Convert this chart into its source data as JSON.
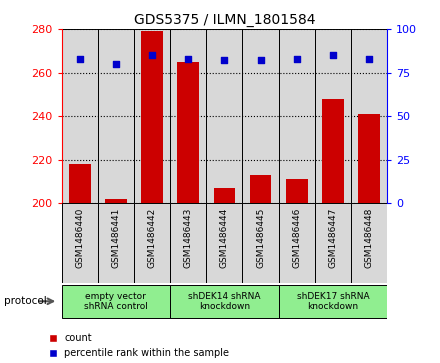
{
  "title": "GDS5375 / ILMN_1801584",
  "samples": [
    "GSM1486440",
    "GSM1486441",
    "GSM1486442",
    "GSM1486443",
    "GSM1486444",
    "GSM1486445",
    "GSM1486446",
    "GSM1486447",
    "GSM1486448"
  ],
  "counts": [
    218,
    202,
    279,
    265,
    207,
    213,
    211,
    248,
    241
  ],
  "percentile_ranks": [
    83,
    80,
    85,
    83,
    82,
    82,
    83,
    85,
    83
  ],
  "ylim_left": [
    200,
    280
  ],
  "ylim_right": [
    0,
    100
  ],
  "yticks_left": [
    200,
    220,
    240,
    260,
    280
  ],
  "yticks_right": [
    0,
    25,
    50,
    75,
    100
  ],
  "bar_color": "#cc0000",
  "dot_color": "#0000cc",
  "bar_bottom": 200,
  "groups": [
    {
      "label": "empty vector\nshRNA control",
      "start": 0,
      "end": 3,
      "color": "#90ee90"
    },
    {
      "label": "shDEK14 shRNA\nknockdown",
      "start": 3,
      "end": 6,
      "color": "#90ee90"
    },
    {
      "label": "shDEK17 shRNA\nknockdown",
      "start": 6,
      "end": 9,
      "color": "#90ee90"
    }
  ],
  "protocol_label": "protocol",
  "legend_count_label": "count",
  "legend_percentile_label": "percentile rank within the sample",
  "cell_bg_color": "#d8d8d8",
  "group_bg_color": "#90ee90",
  "fig_bg_color": "#ffffff"
}
